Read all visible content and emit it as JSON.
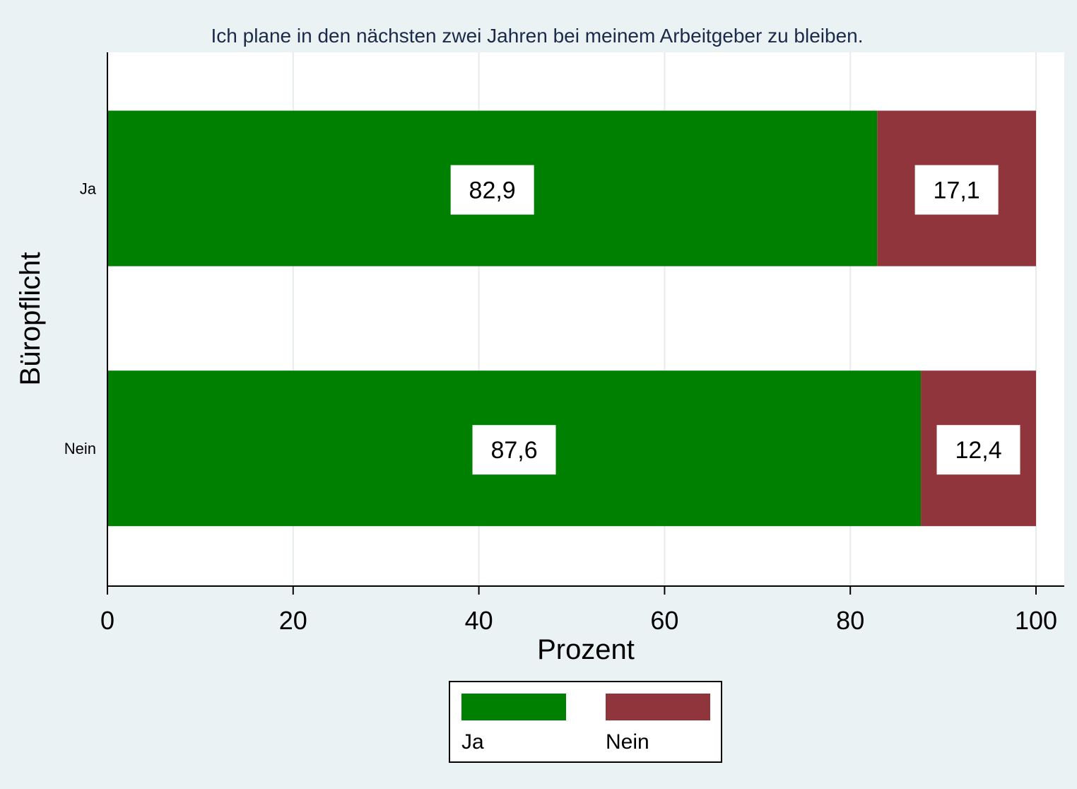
{
  "chart_data": {
    "type": "bar",
    "orientation": "horizontal",
    "stacked": true,
    "title": "Ich plane in den nächsten zwei Jahren bei meinem Arbeitgeber zu bleiben.",
    "xlabel": "Prozent",
    "ylabel": "Büropflicht",
    "categories": [
      "Ja",
      "Nein"
    ],
    "series": [
      {
        "name": "Ja",
        "values": [
          82.9,
          87.6
        ],
        "labels": [
          "82,9",
          "87,6"
        ],
        "color": "#008000"
      },
      {
        "name": "Nein",
        "values": [
          17.1,
          12.4
        ],
        "labels": [
          "17,1",
          "12,4"
        ],
        "color": "#90353b"
      }
    ],
    "xlim": [
      0,
      100
    ],
    "xticks": [
      0,
      20,
      40,
      60,
      80,
      100
    ],
    "grid": true,
    "legend_position": "bottom",
    "background_color": "#eaf2f3",
    "plot_background_color": "#ffffff"
  }
}
